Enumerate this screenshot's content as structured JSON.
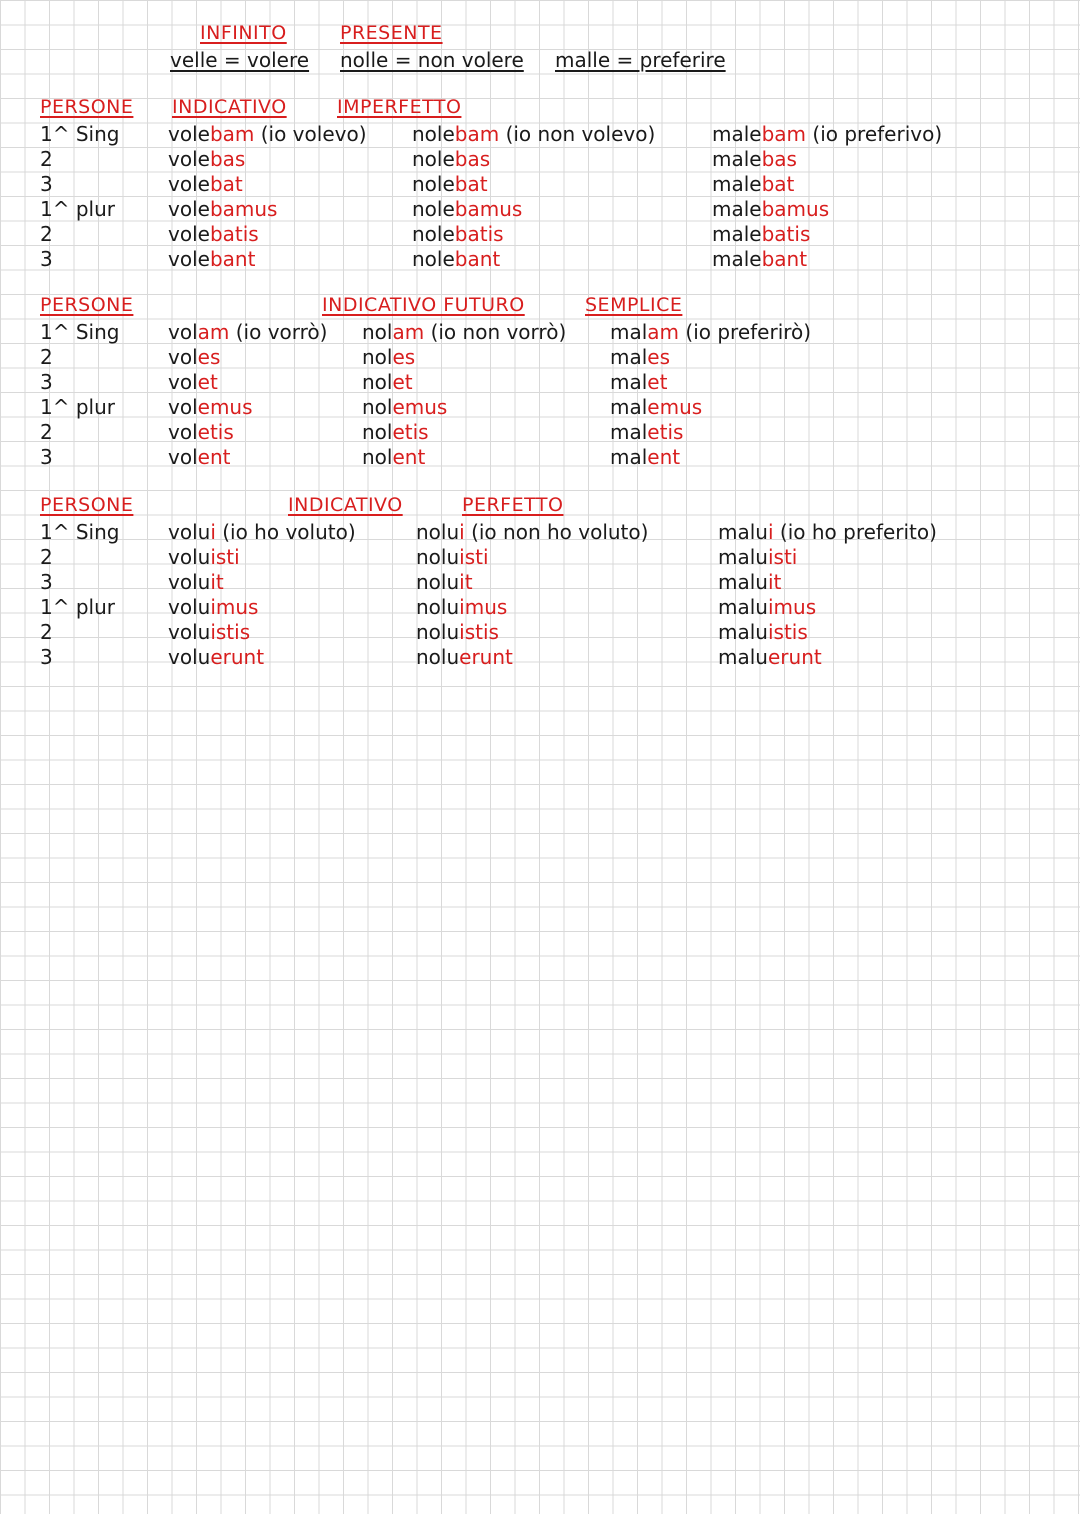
{
  "header": {
    "infinito_title": "INFINITO",
    "presente_title": "PRESENTE",
    "velle_def": "velle = volere",
    "nolle_def": "nolle = non volere",
    "malle_def": "malle = preferire"
  },
  "imperfetto": {
    "persone_label": "PERSONE",
    "title_a": "INDICATIVO",
    "title_b": "IMPERFETTO",
    "persons": [
      "1^ Sing",
      "2",
      "3",
      "1^ plur",
      "2",
      "3"
    ],
    "volo": {
      "first_stem": "vole",
      "first_end": "bam",
      "first_tr": " (io volevo)",
      "forms": [
        [
          "vole",
          "bas"
        ],
        [
          "vole",
          "bat"
        ],
        [
          "vole",
          "bamus"
        ],
        [
          "vole",
          "batis"
        ],
        [
          "vole",
          "bant"
        ]
      ]
    },
    "nolo": {
      "first_stem": "nole",
      "first_end": "bam",
      "first_tr": " (io non volevo)",
      "forms": [
        [
          "nole",
          "bas"
        ],
        [
          "nole",
          "bat"
        ],
        [
          "nole",
          "bamus"
        ],
        [
          "nole",
          "batis"
        ],
        [
          "nole",
          "bant"
        ]
      ]
    },
    "malo": {
      "first_stem": "male",
      "first_end": "bam",
      "first_tr": " (io preferivo)",
      "forms": [
        [
          "male",
          "bas"
        ],
        [
          "male",
          "bat"
        ],
        [
          "male",
          "bamus"
        ],
        [
          "male",
          "batis"
        ],
        [
          "male",
          "bant"
        ]
      ]
    }
  },
  "futuro": {
    "persone_label": "PERSONE",
    "title_a": "INDICATIVO FUTURO",
    "title_b": "SEMPLICE",
    "persons": [
      "1^ Sing",
      "2",
      "3",
      "1^ plur",
      "2",
      "3"
    ],
    "volo": {
      "first_stem": "vol",
      "first_end": "am",
      "first_tr": " (io vorrò)",
      "forms": [
        [
          "vol",
          "es"
        ],
        [
          "vol",
          "et"
        ],
        [
          "vol",
          "emus"
        ],
        [
          "vol",
          "etis"
        ],
        [
          "vol",
          "ent"
        ]
      ]
    },
    "nolo": {
      "first_stem": "nol",
      "first_end": "am",
      "first_tr": " (io non vorrò)",
      "forms": [
        [
          "nol",
          "es"
        ],
        [
          "nol",
          "et"
        ],
        [
          "nol",
          "emus"
        ],
        [
          "nol",
          "etis"
        ],
        [
          "nol",
          "ent"
        ]
      ]
    },
    "malo": {
      "first_stem": "mal",
      "first_end": "am",
      "first_tr": " (io preferirò)",
      "forms": [
        [
          "mal",
          "es"
        ],
        [
          "mal",
          "et"
        ],
        [
          "mal",
          "emus"
        ],
        [
          "mal",
          "etis"
        ],
        [
          "mal",
          "ent"
        ]
      ]
    }
  },
  "perfetto": {
    "persone_label": "PERSONE",
    "title_a": "INDICATIVO",
    "title_b": "PERFETTO",
    "persons": [
      "1^ Sing",
      "2",
      "3",
      "1^ plur",
      "2",
      "3"
    ],
    "volo": {
      "first_stem": "volu",
      "first_end": "i",
      "first_tr": " (io ho voluto)",
      "forms": [
        [
          "volu",
          "isti"
        ],
        [
          "volu",
          "it"
        ],
        [
          "volu",
          "imus"
        ],
        [
          "volu",
          "istis"
        ],
        [
          "volu",
          "erunt"
        ]
      ]
    },
    "nolo": {
      "first_stem": "nolu",
      "first_end": "i",
      "first_tr": " (io non ho voluto)",
      "forms": [
        [
          "nolu",
          "isti"
        ],
        [
          "nolu",
          "it"
        ],
        [
          "nolu",
          "imus"
        ],
        [
          "nolu",
          "istis"
        ],
        [
          "nolu",
          "erunt"
        ]
      ]
    },
    "malo": {
      "first_stem": "malu",
      "first_end": "i",
      "first_tr": " (io ho preferito)",
      "forms": [
        [
          "malu",
          "isti"
        ],
        [
          "malu",
          "it"
        ],
        [
          "malu",
          "imus"
        ],
        [
          "malu",
          "istis"
        ],
        [
          "malu",
          "erunt"
        ]
      ]
    }
  }
}
